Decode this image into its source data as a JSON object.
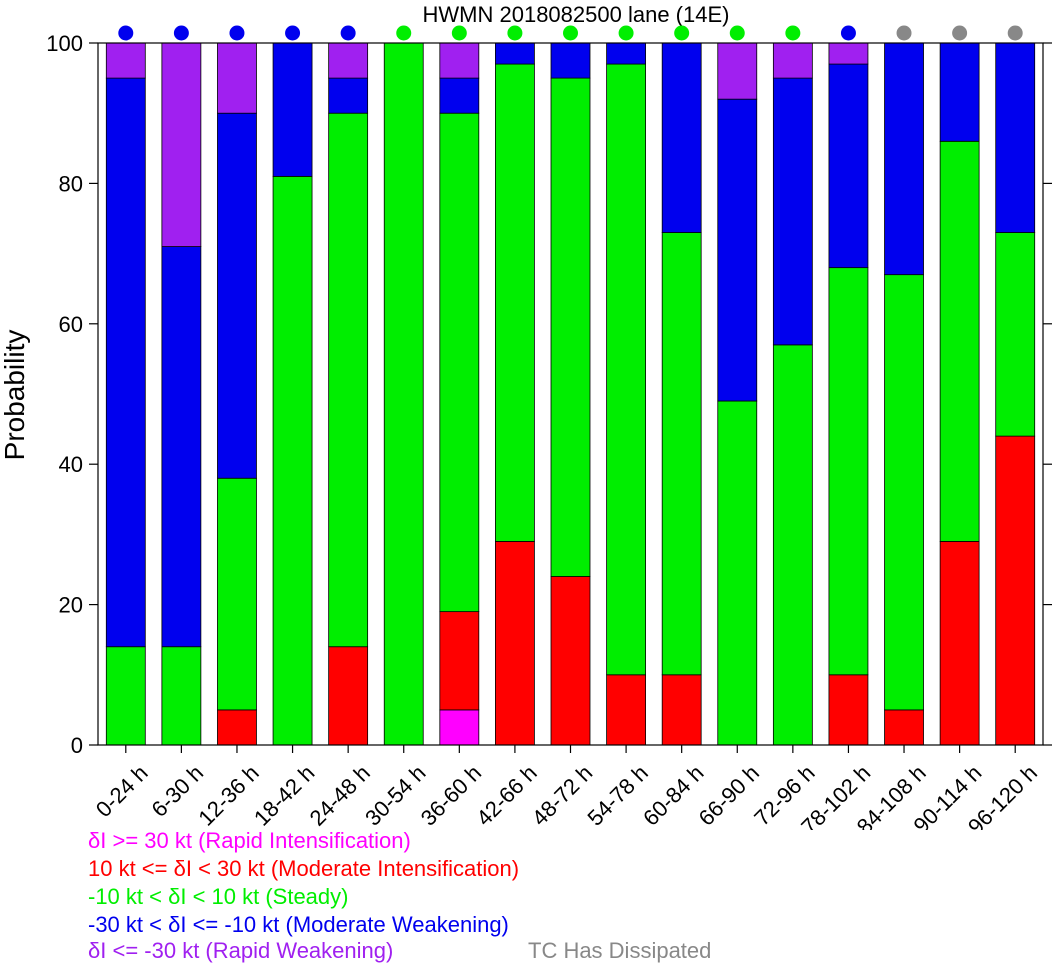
{
  "chart_data": {
    "type": "bar",
    "stacked": true,
    "title": "HWMN 2018082500 lane (14E)",
    "xlabel": "",
    "ylabel": "Probability",
    "ylim": [
      0,
      100
    ],
    "yticks": [
      0,
      20,
      40,
      60,
      80,
      100
    ],
    "categories": [
      "0-24 h",
      "6-30 h",
      "12-36 h",
      "18-42 h",
      "24-48 h",
      "30-54 h",
      "36-60 h",
      "42-66 h",
      "48-72 h",
      "54-78 h",
      "60-84 h",
      "66-90 h",
      "72-96 h",
      "78-102 h",
      "84-108 h",
      "90-114 h",
      "96-120 h"
    ],
    "series": [
      {
        "name": "Rapid Intensification",
        "color": "#ff00ff",
        "values": [
          0,
          0,
          0,
          0,
          0,
          0,
          5,
          0,
          0,
          0,
          0,
          0,
          0,
          0,
          0,
          0,
          0
        ]
      },
      {
        "name": "Moderate Intensification",
        "color": "#ff0000",
        "values": [
          0,
          0,
          5,
          0,
          14,
          0,
          14,
          29,
          24,
          10,
          10,
          0,
          0,
          10,
          5,
          29,
          44
        ]
      },
      {
        "name": "Steady",
        "color": "#00ee00",
        "values": [
          14,
          14,
          33,
          81,
          76,
          100,
          71,
          68,
          71,
          87,
          63,
          49,
          57,
          58,
          62,
          57,
          29
        ]
      },
      {
        "name": "Moderate Weakening",
        "color": "#0000ee",
        "values": [
          81,
          57,
          52,
          19,
          5,
          0,
          5,
          3,
          5,
          3,
          27,
          43,
          38,
          29,
          33,
          14,
          27
        ]
      },
      {
        "name": "Rapid Weakening",
        "color": "#a020f0",
        "values": [
          5,
          29,
          10,
          0,
          5,
          0,
          5,
          0,
          0,
          0,
          0,
          8,
          5,
          3,
          0,
          0,
          0
        ]
      }
    ],
    "status_dots": [
      "blue",
      "blue",
      "blue",
      "blue",
      "blue",
      "green",
      "green",
      "green",
      "green",
      "green",
      "green",
      "green",
      "green",
      "blue",
      "gray",
      "gray",
      "gray"
    ],
    "dot_colors": {
      "blue": "#0000ee",
      "green": "#00ee00",
      "gray": "#888888"
    }
  },
  "legend": {
    "ri": "δI >= 30 kt (Rapid Intensification)",
    "mi": "10 kt <= δI < 30 kt (Moderate Intensification)",
    "steady": "-10 kt < δI < 10 kt (Steady)",
    "mw": "-30 kt < δI <= -10 kt (Moderate Weakening)",
    "rw": "δI <= -30 kt (Rapid Weakening)",
    "dissipated": "TC Has Dissipated"
  },
  "colors": {
    "ri": "#ff00ff",
    "mi": "#ff0000",
    "steady": "#00ee00",
    "mw": "#0000ee",
    "rw": "#a020f0",
    "dissipated": "#888888"
  }
}
